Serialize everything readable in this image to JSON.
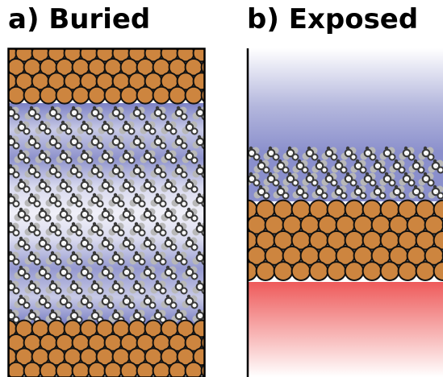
{
  "panels": [
    {
      "label": "a) Buried"
    },
    {
      "label": "b) Exposed"
    }
  ],
  "colors": {
    "copper": "#cd853f",
    "copper_outline": "#111111",
    "film_blue": "#8a8fcc",
    "hot_red": "#ee5555",
    "molecule_dark": "#3a3a3a",
    "molecule_grey": "#b8b8b8",
    "hydrogen": "#eeeeee",
    "frame": "#000000"
  }
}
